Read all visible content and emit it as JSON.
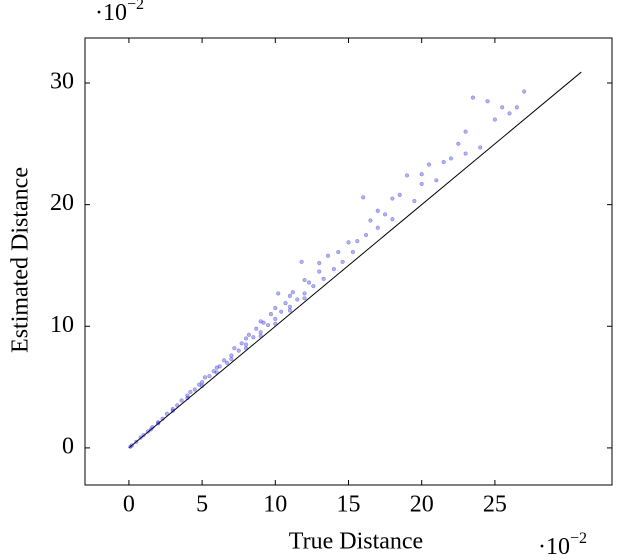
{
  "chart_data": {
    "type": "scatter",
    "x_label": "True Distance",
    "y_label": "Estimated Distance",
    "x_multiplier": {
      "base": "·10",
      "exponent": "−2"
    },
    "y_multiplier": {
      "base": "·10",
      "exponent": "−2"
    },
    "xlim": [
      -3,
      33
    ],
    "ylim": [
      -3.05,
      33.7
    ],
    "xticks": [
      0,
      5,
      10,
      15,
      20,
      25
    ],
    "yticks": [
      0,
      10,
      20,
      30
    ],
    "grid": false,
    "color": "#0000cc",
    "reference_line": {
      "x": [
        0,
        30.9
      ],
      "y": [
        0,
        30.9
      ],
      "color": "#000000"
    },
    "x": [
      0.1,
      0.2,
      0.5,
      0.8,
      1,
      1.3,
      1.5,
      1.6,
      2,
      2,
      2.3,
      2.6,
      3,
      3,
      3.3,
      3.6,
      4,
      4,
      4.2,
      4.5,
      4.8,
      5,
      5,
      5.2,
      5.5,
      5.8,
      6,
      6,
      6.2,
      6.5,
      6.7,
      7,
      7,
      7.2,
      7.5,
      7.7,
      8,
      8,
      8,
      8.2,
      8.5,
      8.7,
      9,
      9,
      9,
      9.2,
      9.5,
      9.7,
      10,
      10,
      10,
      10.2,
      10.4,
      10.7,
      11,
      11,
      11,
      11.2,
      11.5,
      11.8,
      12,
      12,
      12,
      12.3,
      12.6,
      13,
      13,
      13.3,
      13.6,
      14,
      14.3,
      14.6,
      15,
      15.3,
      15.6,
      16,
      16.2,
      16.5,
      17,
      17,
      17.5,
      18,
      18,
      18.5,
      19,
      19.5,
      20,
      20,
      20.5,
      21,
      21.5,
      22,
      22.5,
      23,
      23,
      23.5,
      24,
      24.5,
      25,
      25.5,
      26,
      26.5,
      27
    ],
    "y": [
      0.1,
      0.2,
      0.5,
      0.85,
      1.05,
      1.35,
      1.52,
      1.7,
      2.02,
      2.1,
      2.4,
      2.8,
      3.05,
      3.2,
      3.5,
      3.9,
      4.1,
      4.3,
      4.6,
      4.8,
      5.2,
      5.1,
      5.4,
      5.8,
      5.9,
      6.3,
      6.2,
      6.6,
      6.7,
      7.2,
      7.0,
      7.3,
      7.6,
      8.2,
      8.0,
      8.6,
      8.2,
      8.5,
      9.0,
      9.3,
      9.1,
      9.8,
      9.2,
      9.5,
      10.4,
      10.3,
      10.1,
      11.0,
      10.2,
      10.6,
      11.5,
      12.7,
      11.2,
      11.9,
      11.3,
      11.6,
      12.5,
      12.8,
      12.2,
      15.3,
      12.3,
      12.7,
      13.8,
      13.6,
      13.3,
      14.5,
      15.2,
      13.9,
      15.8,
      14.7,
      16.1,
      15.3,
      16.9,
      16.1,
      17.0,
      20.6,
      17.5,
      18.7,
      18.1,
      19.5,
      19.2,
      18.8,
      20.5,
      20.8,
      22.4,
      20.3,
      21.7,
      22.5,
      23.3,
      22.0,
      23.5,
      23.8,
      25.0,
      24.2,
      26.0,
      28.8,
      24.7,
      28.5,
      27.0,
      28.0,
      27.5,
      28.0,
      29.3
    ]
  }
}
